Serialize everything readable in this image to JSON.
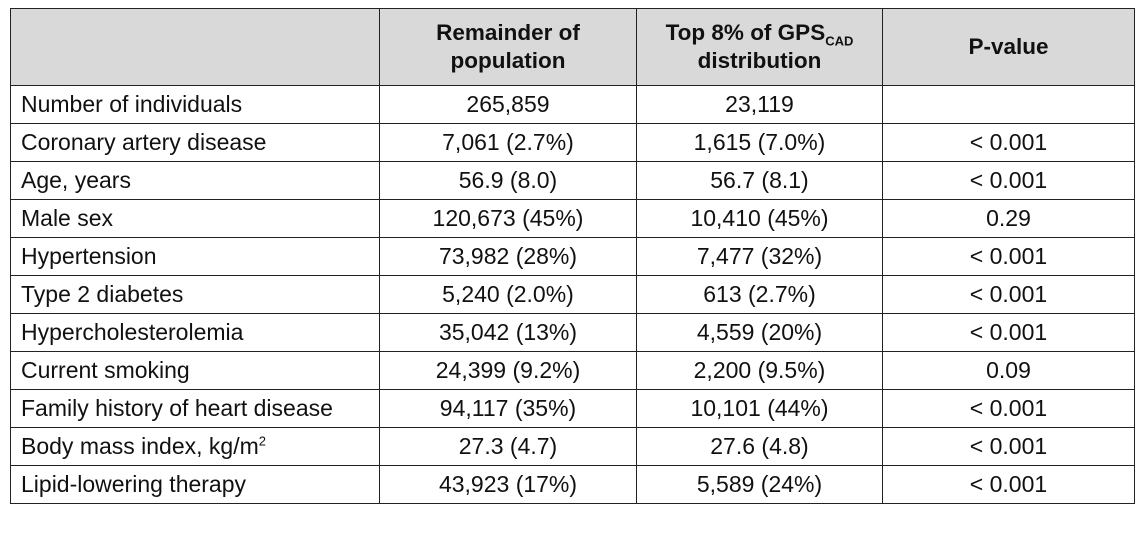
{
  "table": {
    "headers": {
      "col0": "",
      "col1_line1": "Remainder of",
      "col1_line2": "population",
      "col2_line1_main": "Top 8% of GPS",
      "col2_line1_sub": "CAD",
      "col2_line2": "distribution",
      "col3": "P-value"
    },
    "rows": [
      {
        "label": "Number of individuals",
        "label_sup": "",
        "remainder": "265,859",
        "top": "23,119",
        "p": ""
      },
      {
        "label": "Coronary artery disease",
        "label_sup": "",
        "remainder": "7,061 (2.7%)",
        "top": "1,615 (7.0%)",
        "p": "< 0.001"
      },
      {
        "label": "Age, years",
        "label_sup": "",
        "remainder": "56.9 (8.0)",
        "top": "56.7 (8.1)",
        "p": "< 0.001"
      },
      {
        "label": "Male sex",
        "label_sup": "",
        "remainder": "120,673 (45%)",
        "top": "10,410 (45%)",
        "p": "0.29"
      },
      {
        "label": "Hypertension",
        "label_sup": "",
        "remainder": "73,982 (28%)",
        "top": "7,477 (32%)",
        "p": "< 0.001"
      },
      {
        "label": "Type 2 diabetes",
        "label_sup": "",
        "remainder": "5,240 (2.0%)",
        "top": "613 (2.7%)",
        "p": "< 0.001"
      },
      {
        "label": "Hypercholesterolemia",
        "label_sup": "",
        "remainder": "35,042 (13%)",
        "top": "4,559 (20%)",
        "p": "< 0.001"
      },
      {
        "label": "Current smoking",
        "label_sup": "",
        "remainder": "24,399 (9.2%)",
        "top": "2,200 (9.5%)",
        "p": "0.09"
      },
      {
        "label": "Family history of heart disease",
        "label_sup": "",
        "remainder": "94,117 (35%)",
        "top": "10,101 (44%)",
        "p": "< 0.001"
      },
      {
        "label": "Body mass index, kg/m",
        "label_sup": "2",
        "remainder": "27.3 (4.7)",
        "top": "27.6 (4.8)",
        "p": "< 0.001"
      },
      {
        "label": "Lipid-lowering therapy",
        "label_sup": "",
        "remainder": "43,923 (17%)",
        "top": "5,589 (24%)",
        "p": "< 0.001"
      }
    ]
  },
  "colors": {
    "header_background": "#d9d9d9",
    "border": "#222222"
  }
}
